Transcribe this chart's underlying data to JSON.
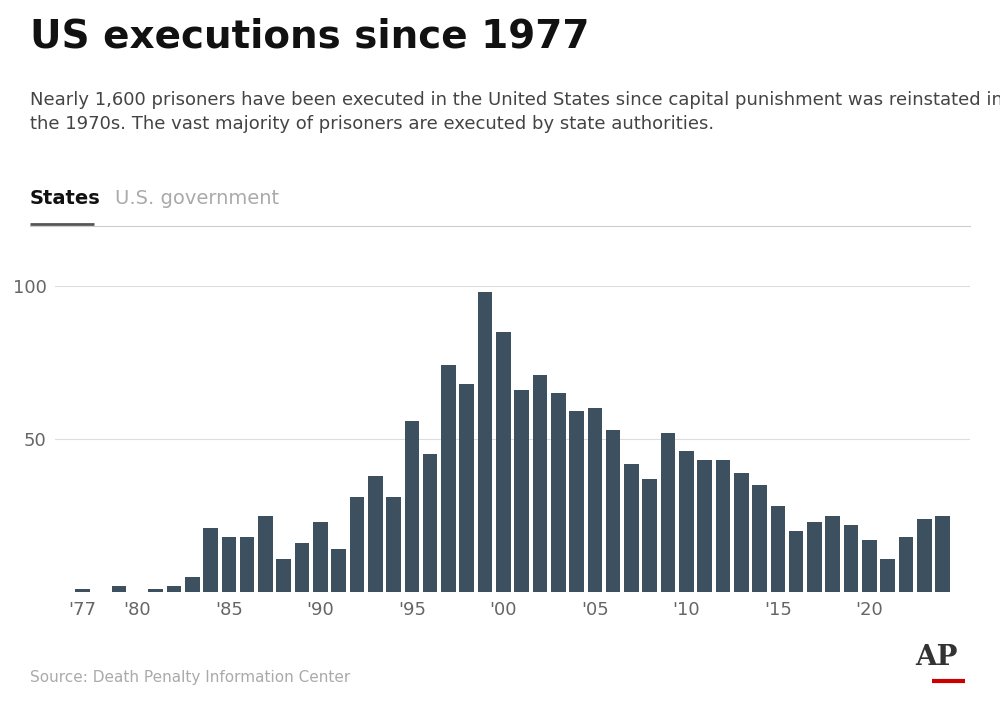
{
  "title": "US executions since 1977",
  "subtitle_line1": "Nearly 1,600 prisoners have been executed in the United States since capital punishment was reinstated in",
  "subtitle_line2": "the 1970s. The vast majority of prisoners are executed by state authorities.",
  "tab_active": "States",
  "tab_inactive": "U.S. government",
  "source": "Source: Death Penalty Information Center",
  "bar_color": "#3d5060",
  "background_color": "#ffffff",
  "years": [
    1977,
    1978,
    1979,
    1980,
    1981,
    1982,
    1983,
    1984,
    1985,
    1986,
    1987,
    1988,
    1989,
    1990,
    1991,
    1992,
    1993,
    1994,
    1995,
    1996,
    1997,
    1998,
    1999,
    2000,
    2001,
    2002,
    2003,
    2004,
    2005,
    2006,
    2007,
    2008,
    2009,
    2010,
    2011,
    2012,
    2013,
    2014,
    2015,
    2016,
    2017,
    2018,
    2019,
    2020,
    2021,
    2022,
    2023,
    2024
  ],
  "values": [
    1,
    0,
    2,
    0,
    1,
    2,
    5,
    21,
    18,
    18,
    25,
    11,
    16,
    23,
    14,
    31,
    38,
    31,
    56,
    45,
    74,
    68,
    98,
    85,
    66,
    71,
    65,
    59,
    60,
    53,
    42,
    37,
    52,
    46,
    43,
    43,
    39,
    35,
    28,
    20,
    23,
    25,
    22,
    17,
    11,
    18,
    24,
    25
  ],
  "ylim": [
    0,
    110
  ],
  "xlabel_ticks": [
    1977,
    1980,
    1985,
    1990,
    1995,
    2000,
    2005,
    2010,
    2015,
    2020
  ],
  "xlabel_labels": [
    "'77",
    "'80",
    "'85",
    "'90",
    "'95",
    "'00",
    "'05",
    "'10",
    "'15",
    "'20"
  ],
  "ap_logo_color": "#cc0000",
  "title_fontsize": 28,
  "subtitle_fontsize": 13,
  "tick_fontsize": 13,
  "tab_fontsize": 14,
  "source_fontsize": 11
}
